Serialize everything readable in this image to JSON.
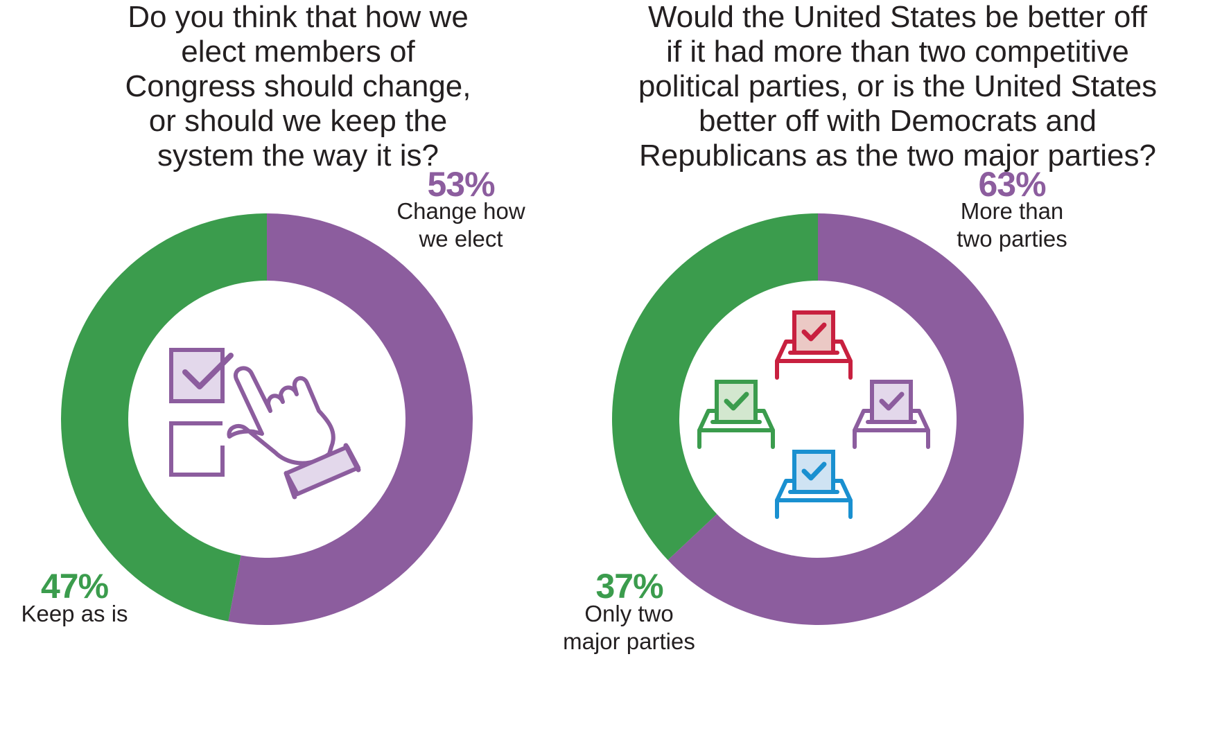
{
  "colors": {
    "purple": "#8c5d9e",
    "green": "#3b9c4d",
    "light_purple": "#e3d8eb",
    "red": "#c8203f",
    "light_red": "#ebc9c5",
    "light_green": "#d3e7cf",
    "blue": "#1a90d0",
    "light_blue": "#cfe3f3"
  },
  "icons": {
    "left": "checkbox-hand-icon",
    "right": "ballot-boxes-icon"
  },
  "chart_data": [
    {
      "type": "pie",
      "title": "Do you think that how we\nelect members of\nCongress should change,\nor should we keep the\nsystem the way it is?",
      "slices": [
        {
          "label": "Change how\nwe elect",
          "value": 53,
          "value_label": "53%",
          "color": "#8c5d9e"
        },
        {
          "label": "Keep as is",
          "value": 47,
          "value_label": "47%",
          "color": "#3b9c4d"
        }
      ]
    },
    {
      "type": "pie",
      "title": "Would the United States be better off\nif it had more than two competitive\npolitical parties, or is the United States\nbetter off with Democrats and\nRepublicans as the two major parties?",
      "slices": [
        {
          "label": "More than\ntwo parties",
          "value": 63,
          "value_label": "63%",
          "color": "#8c5d9e"
        },
        {
          "label": "Only two\nmajor parties",
          "value": 37,
          "value_label": "37%",
          "color": "#3b9c4d"
        }
      ]
    }
  ]
}
